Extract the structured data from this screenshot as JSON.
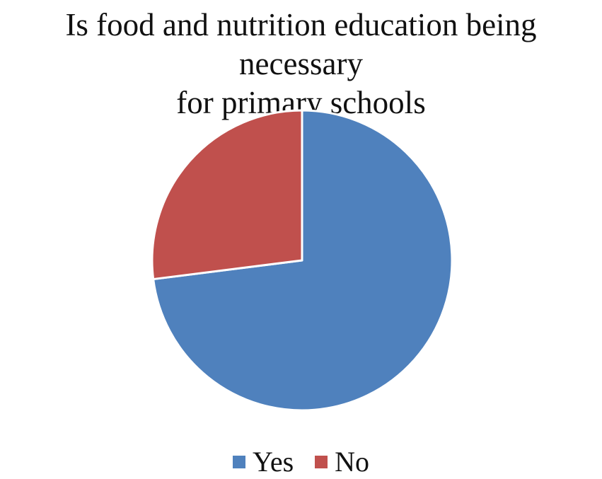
{
  "chart_data": {
    "type": "pie",
    "title_lines": [
      "Is food and nutrition education being necessary",
      "for primary schools"
    ],
    "series": [
      {
        "name": "Yes",
        "value": 73,
        "color": "#4F81BD"
      },
      {
        "name": "No",
        "value": 27,
        "color": "#C0504D"
      }
    ],
    "legend_position": "bottom",
    "slice_border_color": "#ffffff"
  }
}
